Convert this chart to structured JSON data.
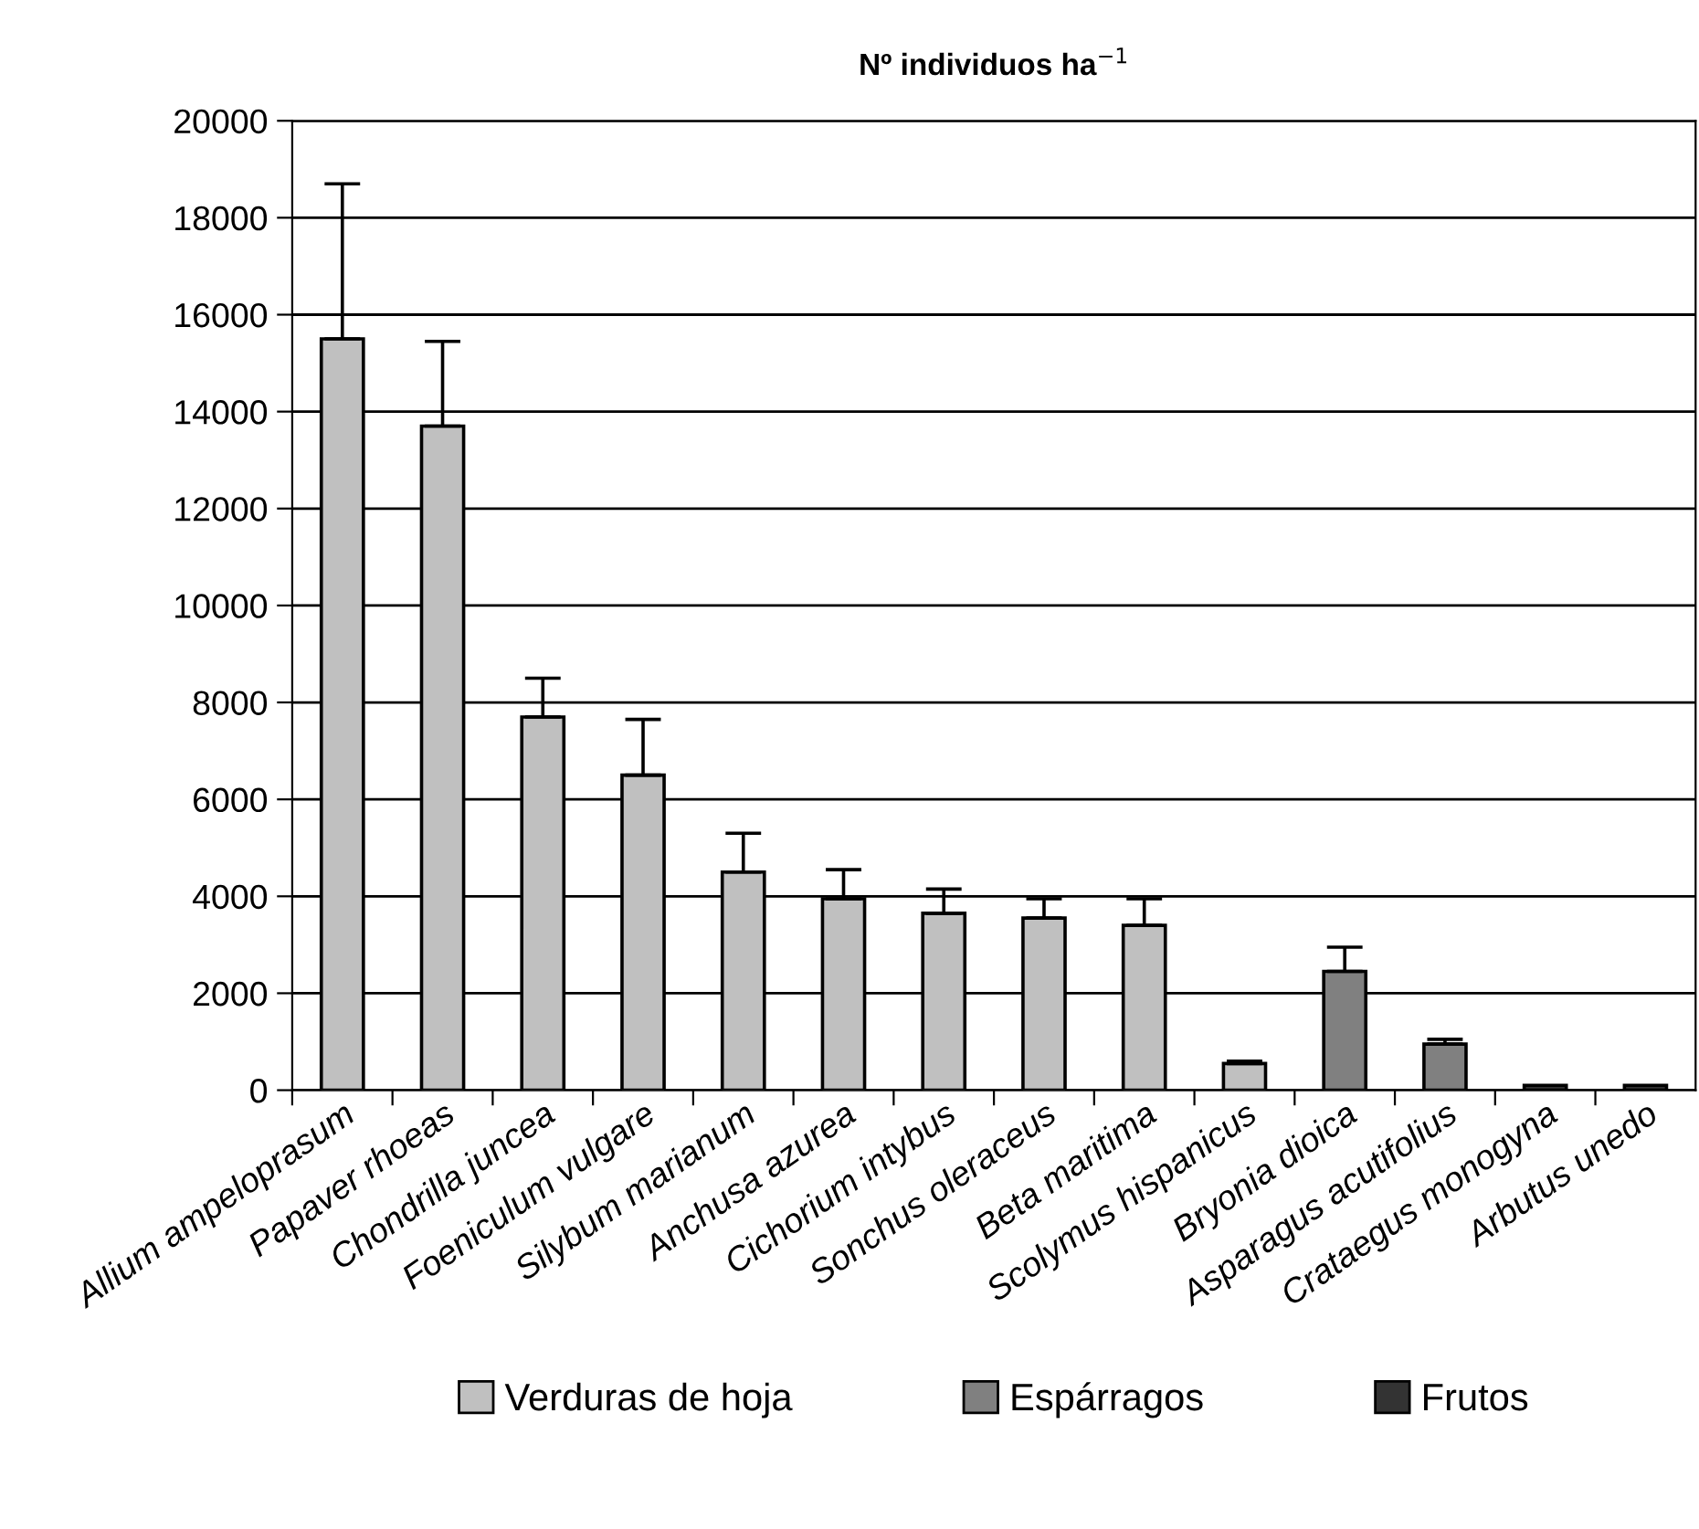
{
  "chart_data": {
    "type": "bar",
    "title": "Nº individuos ha$^{−1}$",
    "categories": [
      "Allium ampeloprasum",
      "Papaver rhoeas",
      "Chondrilla juncea",
      "Foeniculum vulgare",
      "Silybum marianum",
      "Anchusa azurea",
      "Cichorium intybus",
      "Sonchus oleraceus",
      "Beta maritima",
      "Scolymus hispanicus",
      "Bryonia dioica",
      "Asparagus acutifolius",
      "Crataegus monogyna",
      "Arbutus unedo"
    ],
    "series": [
      {
        "name": "Verduras de hoja",
        "color": "#c0c0c0",
        "values": [
          15500,
          13700,
          7700,
          6500,
          4500,
          3950,
          3650,
          3550,
          3400,
          550,
          null,
          null,
          null,
          null
        ],
        "errors": [
          3200,
          1750,
          800,
          1150,
          800,
          600,
          500,
          400,
          550,
          50,
          null,
          null,
          null,
          null
        ]
      },
      {
        "name": "Espárragos",
        "color": "#808080",
        "values": [
          null,
          null,
          null,
          null,
          null,
          null,
          null,
          null,
          null,
          null,
          2450,
          950,
          null,
          null
        ],
        "errors": [
          null,
          null,
          null,
          null,
          null,
          null,
          null,
          null,
          null,
          null,
          500,
          100,
          null,
          null
        ]
      },
      {
        "name": "Frutos",
        "color": "#333333",
        "values": [
          null,
          null,
          null,
          null,
          null,
          null,
          null,
          null,
          null,
          null,
          null,
          null,
          100,
          100
        ]
      }
    ],
    "ylim": [
      0,
      20000
    ],
    "yticks": [
      0,
      2000,
      4000,
      6000,
      8000,
      10000,
      12000,
      14000,
      16000,
      18000,
      20000
    ],
    "grid": "y",
    "legend": "bottom"
  }
}
